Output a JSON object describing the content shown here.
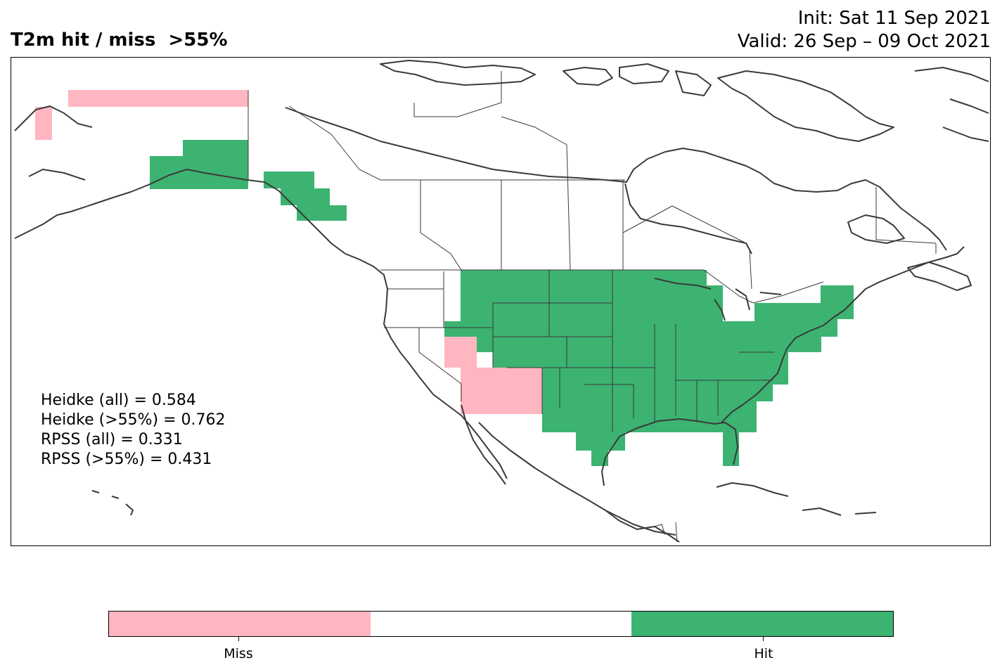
{
  "header": {
    "title": "T2m hit / miss  >55%",
    "init": "Init: Sat 11 Sep 2021",
    "valid": "Valid: 26 Sep – 09 Oct 2021"
  },
  "stats": [
    "Heidke (all) = 0.584",
    "Heidke (>55%) = 0.762",
    "RPSS (all) = 0.331",
    "RPSS (>55%) = 0.431"
  ],
  "colorbar": {
    "categories": [
      {
        "label": "Miss",
        "color": "#ffb6c1"
      },
      {
        "label": "",
        "color": "#ffffff"
      },
      {
        "label": "Hit",
        "color": "#3cb371"
      }
    ]
  },
  "map": {
    "region": "North America",
    "coastline_color": "#3a3a3a",
    "hit_color": "#3cb371",
    "miss_color": "#ffb6c1"
  }
}
